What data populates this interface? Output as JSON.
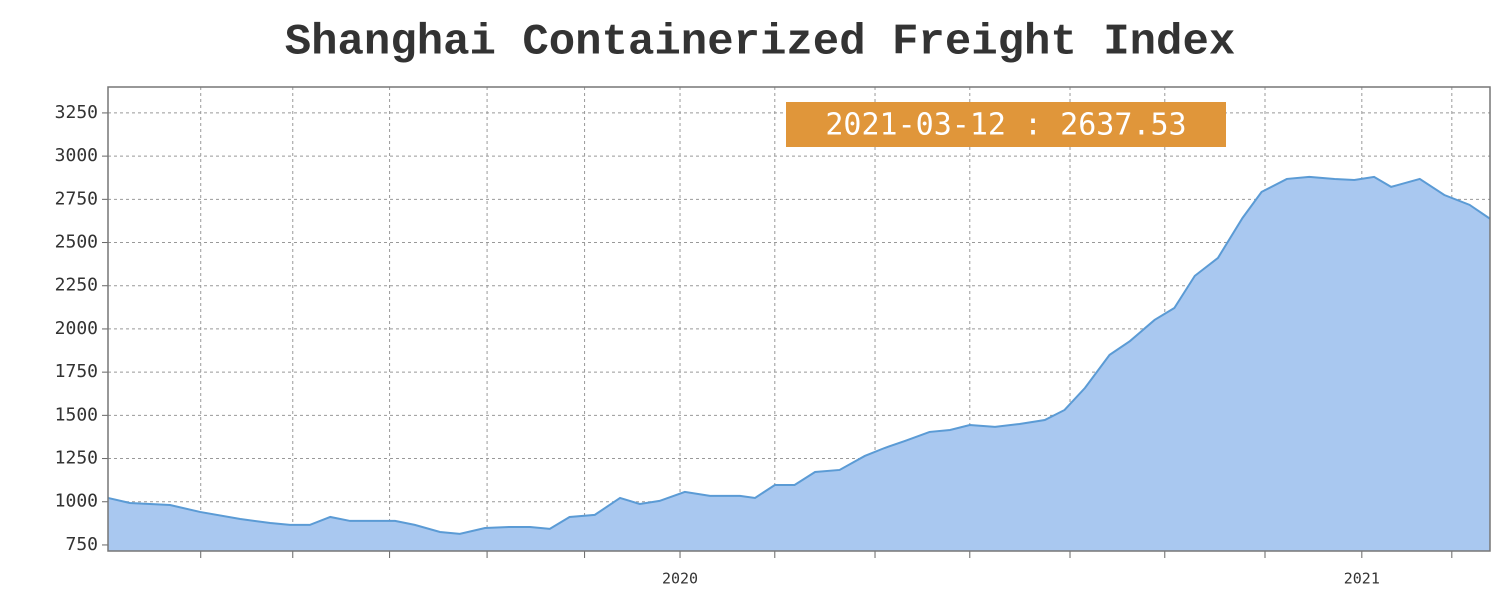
{
  "chart_data": {
    "type": "area",
    "title": "Shanghai Containerized Freight Index",
    "annotation": "2021-03-12 : 2637.53",
    "x": [
      2019.161,
      2019.193,
      2019.252,
      2019.296,
      2019.355,
      2019.399,
      2019.428,
      2019.457,
      2019.487,
      2019.516,
      2019.582,
      2019.611,
      2019.648,
      2019.677,
      2019.714,
      2019.75,
      2019.78,
      2019.809,
      2019.838,
      2019.875,
      2019.912,
      2019.941,
      2019.97,
      2020.007,
      2020.044,
      2020.088,
      2020.11,
      2020.139,
      2020.168,
      2020.198,
      2020.234,
      2020.271,
      2020.3,
      2020.33,
      2020.366,
      2020.396,
      2020.425,
      2020.462,
      2020.498,
      2020.535,
      2020.564,
      2020.594,
      2020.63,
      2020.66,
      2020.696,
      2020.725,
      2020.755,
      2020.789,
      2020.825,
      2020.853,
      2020.89,
      2020.923,
      2020.96,
      2020.989,
      2021.018,
      2021.043,
      2021.085,
      2021.121,
      2021.158,
      2021.188
    ],
    "series": [
      {
        "color": "#a9c8f0",
        "line_color": "#5b9bd5",
        "values": [
          1022,
          993,
          981,
          941,
          900,
          877,
          866,
          866,
          912,
          889,
          889,
          866,
          825,
          814,
          848,
          854,
          854,
          843,
          912,
          924,
          1022,
          987,
          1005,
          1057,
          1034,
          1034,
          1022,
          1097,
          1097,
          1172,
          1184,
          1265,
          1311,
          1352,
          1404,
          1415,
          1444,
          1433,
          1450,
          1473,
          1531,
          1659,
          1850,
          1930,
          2052,
          2121,
          2307,
          2411,
          2642,
          2793,
          2868,
          2880,
          2868,
          2862,
          2880,
          2822,
          2868,
          2775,
          2718,
          2637.53
        ]
      }
    ],
    "xlim": [
      2019.161,
      2021.188
    ],
    "xticks": [
      2020,
      2021
    ],
    "xminor_ticks": [
      2019.297,
      2019.432,
      2019.574,
      2019.717,
      2019.86,
      2020.139,
      2020.286,
      2020.425,
      2020.572,
      2020.711,
      2020.858,
      2021.132
    ],
    "ylim": [
      715,
      3400
    ],
    "yticks": [
      750,
      1000,
      1250,
      1500,
      1750,
      2000,
      2250,
      2500,
      2750,
      3000,
      3250
    ],
    "grid": true,
    "annotation_color": "#e0963a"
  }
}
